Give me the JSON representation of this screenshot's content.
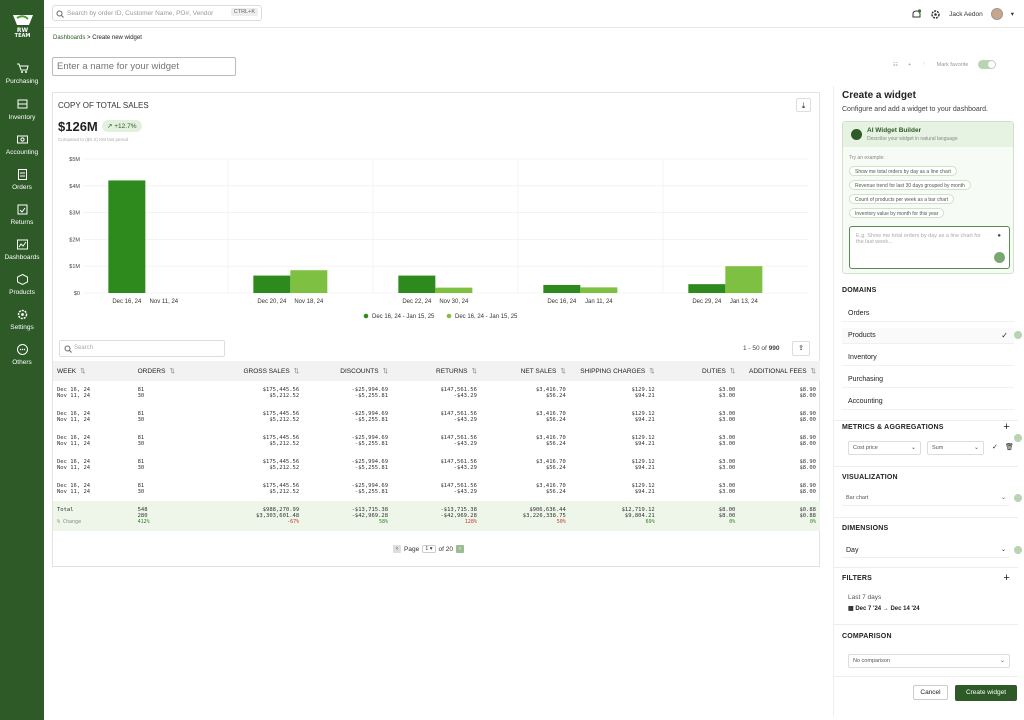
{
  "brand": {
    "logo_text": "RW TEAM"
  },
  "nav": [
    {
      "label": "Purchasing",
      "icon": "cart-icon"
    },
    {
      "label": "Inventory",
      "icon": "inventory-icon"
    },
    {
      "label": "Accounting",
      "icon": "accounting-icon"
    },
    {
      "label": "Orders",
      "icon": "orders-icon"
    },
    {
      "label": "Returns",
      "icon": "returns-icon"
    },
    {
      "label": "Dashboards",
      "icon": "dashboard-icon"
    },
    {
      "label": "Products",
      "icon": "products-icon"
    },
    {
      "label": "Settings",
      "icon": "gear-icon"
    },
    {
      "label": "Others",
      "icon": "others-icon"
    }
  ],
  "topbar": {
    "search_placeholder": "Search by order ID, Customer Name, PO#, Vendor",
    "shortcut": "CTRL+K",
    "user": "Jack Aedon"
  },
  "breadcrumb": {
    "parent": "Dashboards",
    "sep": " > ",
    "current": "Create new widget"
  },
  "widget_name_placeholder": "Enter a name for your widget",
  "toolbar": {
    "favorite": "Mark favorite"
  },
  "card": {
    "title": "COPY OF TOTAL SALES",
    "total": "$126M",
    "change": "+12.7%",
    "compare": "Compared to ($X.X) KM last period"
  },
  "chart_data": {
    "type": "bar",
    "ylim": [
      0,
      5000000
    ],
    "yticks": [
      "$0",
      "$1M",
      "$2M",
      "$3M",
      "$4M",
      "$5M"
    ],
    "groups": [
      {
        "labels": [
          "Dec 16, 24",
          "Nov 11, 24"
        ]
      },
      {
        "labels": [
          "Dec 20, 24",
          "Nov 18, 24"
        ]
      },
      {
        "labels": [
          "Dec 22, 24",
          "Nov 30, 24"
        ]
      },
      {
        "labels": [
          "Dec 16, 24",
          "Jan 11, 24"
        ]
      },
      {
        "labels": [
          "Dec 29, 24",
          "Jan 13, 24"
        ]
      }
    ],
    "series": [
      {
        "name": "Dec 16, 24 - Jan 15, 25",
        "color": "#2f8a1e",
        "values": [
          4200000,
          650000,
          650000,
          300000,
          330000
        ]
      },
      {
        "name": "Dec 16, 24 - Jan 15, 25",
        "color": "#7ec142",
        "values": [
          0,
          850000,
          200000,
          210000,
          1000000
        ]
      }
    ]
  },
  "table": {
    "search_placeholder": "Search",
    "range": "1 - 50 of ",
    "range_total": "990",
    "headers": [
      "WEEK",
      "ORDERS",
      "GROSS SALES",
      "DISCOUNTS",
      "RETURNS",
      "NET SALES",
      "SHIPPING CHARGES",
      "DUTIES",
      "ADDITIONAL FEES"
    ],
    "rows": [
      [
        "Dec 16, 24|Nov 11, 24",
        "81|30",
        "$175,445.56|$5,212.52",
        "-$25,994.69|-$5,255.81",
        "$147,561.56|-$43.29",
        "$3,416.70|$56.24",
        "$129.12|$94.21",
        "$3.00|$3.00",
        "$8.90|$8.00"
      ],
      [
        "Dec 16, 24|Nov 11, 24",
        "81|30",
        "$175,445.56|$5,212.52",
        "-$25,994.69|-$5,255.81",
        "$147,561.56|-$43.29",
        "$3,416.70|$56.24",
        "$129.12|$94.21",
        "$3.00|$3.00",
        "$8.90|$8.00"
      ],
      [
        "Dec 16, 24|Nov 11, 24",
        "81|30",
        "$175,445.56|$5,212.52",
        "-$25,994.69|-$5,255.81",
        "$147,561.56|-$43.29",
        "$3,416.70|$56.24",
        "$129.12|$94.21",
        "$3.00|$3.00",
        "$8.90|$8.00"
      ],
      [
        "Dec 16, 24|Nov 11, 24",
        "81|30",
        "$175,445.56|$5,212.52",
        "-$25,994.69|-$5,255.81",
        "$147,561.56|-$43.29",
        "$3,416.70|$56.24",
        "$129.12|$94.21",
        "$3.00|$3.00",
        "$8.90|$8.00"
      ],
      [
        "Dec 16, 24|Nov 11, 24",
        "81|30",
        "$175,445.56|$5,212.52",
        "-$25,994.69|-$5,255.81",
        "$147,561.56|-$43.29",
        "$3,416.70|$56.24",
        "$129.12|$94.21",
        "$3.00|$3.00",
        "$8.90|$8.00"
      ]
    ],
    "total": {
      "label": "Total",
      "change_label": "% Change",
      "cells": [
        [
          "548",
          "280",
          "412%"
        ],
        [
          "$988,270.99",
          "$3,303,601.48",
          "-67%"
        ],
        [
          "-$13,715.38",
          "-$42,969.28",
          "58%"
        ],
        [
          "-$13,715.38",
          "-$42,969.28",
          "128%"
        ],
        [
          "$906,636.44",
          "$3,226,338.75",
          "50%"
        ],
        [
          "$12,719.12",
          "$9,804.21",
          "69%"
        ],
        [
          "$8.00",
          "$8.00",
          "0%"
        ],
        [
          "$0.88",
          "$0.88",
          "0%"
        ]
      ],
      "change_colors": [
        "grn",
        "red",
        "grn",
        "red",
        "red",
        "grn",
        "grn",
        "grn"
      ]
    },
    "pager": {
      "page_label": "Page",
      "page": "1",
      "of": "of 20"
    }
  },
  "panel": {
    "title": "Create a widget",
    "subtitle": "Configure and add a widget to your dashboard.",
    "ai": {
      "title": "AI Widget Builder",
      "subtitle": "Describe your widget in natural language",
      "try": "Try an example:",
      "examples": [
        "Show me total orders by day as a line chart",
        "Revenue trend for last 30 days grouped by month",
        "Count of products per week as a bar chart",
        "Inventory value by month for this year"
      ],
      "placeholder": "E.g. Show me total orders by day as a line chart for the last week..."
    },
    "domains_title": "DOMAINS",
    "domains": [
      "Orders",
      "Products",
      "Inventory",
      "Purchasing",
      "Accounting"
    ],
    "metrics_title": "METRICS & AGGREGATIONS",
    "metric": "Cost price",
    "agg": "Sum",
    "viz_title": "VISUALIZATION",
    "viz": "Bar chart",
    "dim_title": "DIMENSIONS",
    "dim": "Day",
    "filters_title": "FILTERS",
    "filter_name": "Last 7 days",
    "filter_range": "Dec 7 '24 → Dec 14 '24",
    "comp_title": "COMPARISON",
    "comp": "No comparison",
    "cancel": "Cancel",
    "create": "Create widget"
  }
}
